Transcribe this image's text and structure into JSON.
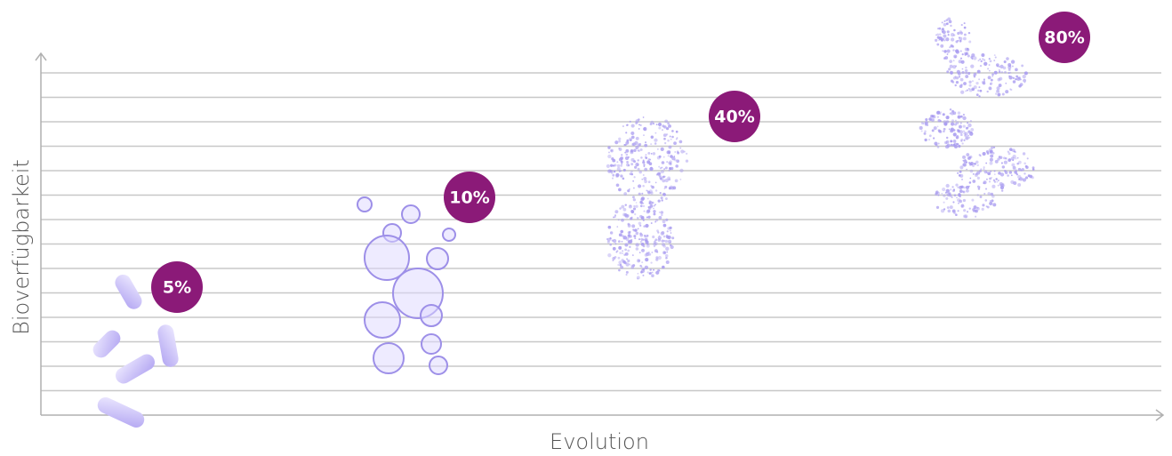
{
  "y_axis_label": "Bioverfügbarkeit",
  "x_axis_label": "Evolution",
  "stages": [
    {
      "label": "5%"
    },
    {
      "label": "10%"
    },
    {
      "label": "40%"
    },
    {
      "label": "80%"
    }
  ]
}
